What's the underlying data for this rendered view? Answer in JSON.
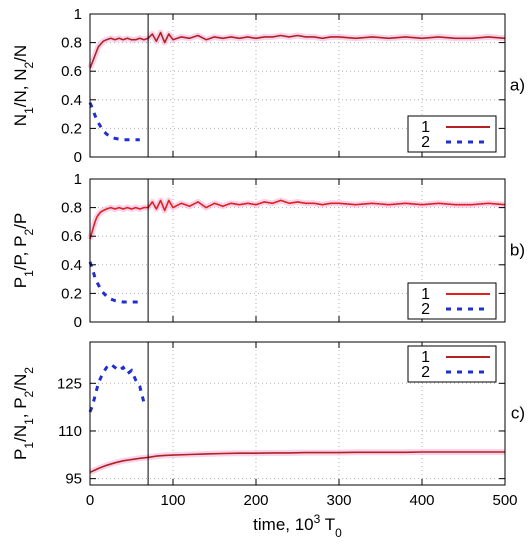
{
  "chart_data": [
    {
      "type": "line",
      "panel_label": "a)",
      "ylabel_parts": [
        "N",
        "1",
        "/N, N",
        "2",
        "/N"
      ],
      "ylim": [
        0,
        1
      ],
      "yticks": [
        0,
        0.2,
        0.4,
        0.6,
        0.8,
        1
      ],
      "ytick_labels": [
        "0",
        "0.2",
        "0.4",
        "0.6",
        "0.8",
        "1"
      ],
      "xlim": [
        0,
        500
      ],
      "xticks": [
        0,
        100,
        200,
        300,
        400,
        500
      ],
      "grid": true,
      "vline_x": 70,
      "legend_position": "bottom-right",
      "series": [
        {
          "name": "1",
          "color": "#b22222",
          "style": "solid",
          "x": [
            0,
            2,
            4,
            6,
            8,
            10,
            13,
            16,
            20,
            25,
            30,
            35,
            40,
            45,
            50,
            55,
            60,
            65,
            70,
            75,
            80,
            85,
            90,
            95,
            100,
            110,
            120,
            130,
            140,
            150,
            160,
            170,
            180,
            190,
            200,
            210,
            220,
            230,
            240,
            250,
            260,
            270,
            280,
            290,
            300,
            320,
            340,
            360,
            380,
            400,
            420,
            440,
            460,
            480,
            500
          ],
          "y": [
            0.62,
            0.65,
            0.68,
            0.71,
            0.74,
            0.77,
            0.79,
            0.81,
            0.82,
            0.83,
            0.82,
            0.83,
            0.82,
            0.83,
            0.82,
            0.82,
            0.83,
            0.82,
            0.83,
            0.86,
            0.81,
            0.87,
            0.8,
            0.86,
            0.82,
            0.84,
            0.83,
            0.85,
            0.82,
            0.84,
            0.83,
            0.84,
            0.83,
            0.84,
            0.83,
            0.84,
            0.84,
            0.85,
            0.84,
            0.85,
            0.84,
            0.84,
            0.83,
            0.84,
            0.84,
            0.83,
            0.84,
            0.83,
            0.84,
            0.83,
            0.84,
            0.83,
            0.83,
            0.84,
            0.83
          ]
        },
        {
          "name": "2",
          "color": "#1f2fd0",
          "style": "dashed",
          "x": [
            0,
            3,
            6,
            10,
            15,
            20,
            25,
            30,
            40,
            50,
            60
          ],
          "y": [
            0.38,
            0.34,
            0.29,
            0.24,
            0.19,
            0.16,
            0.14,
            0.13,
            0.12,
            0.12,
            0.12
          ]
        }
      ]
    },
    {
      "type": "line",
      "panel_label": "b)",
      "ylabel_parts": [
        "P",
        "1",
        "/P, P",
        "2",
        "/P"
      ],
      "ylim": [
        0,
        1
      ],
      "yticks": [
        0,
        0.2,
        0.4,
        0.6,
        0.8,
        1
      ],
      "ytick_labels": [
        "0",
        "0.2",
        "0.4",
        "0.6",
        "0.8",
        "1"
      ],
      "xlim": [
        0,
        500
      ],
      "xticks": [
        0,
        100,
        200,
        300,
        400,
        500
      ],
      "grid": true,
      "vline_x": 70,
      "legend_position": "bottom-right",
      "series": [
        {
          "name": "1",
          "color": "#e02020",
          "style": "solid",
          "x": [
            0,
            2,
            4,
            6,
            8,
            10,
            13,
            16,
            20,
            25,
            30,
            35,
            40,
            45,
            50,
            55,
            60,
            65,
            70,
            75,
            80,
            85,
            90,
            95,
            100,
            110,
            120,
            130,
            140,
            150,
            160,
            170,
            180,
            190,
            200,
            210,
            220,
            230,
            240,
            250,
            260,
            270,
            280,
            290,
            300,
            320,
            340,
            360,
            380,
            400,
            420,
            440,
            460,
            480,
            500
          ],
          "y": [
            0.58,
            0.62,
            0.66,
            0.7,
            0.73,
            0.75,
            0.77,
            0.78,
            0.79,
            0.8,
            0.79,
            0.8,
            0.79,
            0.8,
            0.79,
            0.8,
            0.79,
            0.8,
            0.8,
            0.84,
            0.79,
            0.85,
            0.78,
            0.85,
            0.8,
            0.83,
            0.81,
            0.84,
            0.8,
            0.83,
            0.81,
            0.83,
            0.82,
            0.83,
            0.82,
            0.84,
            0.83,
            0.85,
            0.83,
            0.84,
            0.83,
            0.83,
            0.82,
            0.83,
            0.83,
            0.82,
            0.83,
            0.82,
            0.83,
            0.82,
            0.83,
            0.82,
            0.82,
            0.83,
            0.82
          ]
        },
        {
          "name": "2",
          "color": "#1f2fd0",
          "style": "dashed",
          "x": [
            0,
            3,
            6,
            10,
            15,
            20,
            25,
            30,
            40,
            50,
            60
          ],
          "y": [
            0.42,
            0.37,
            0.31,
            0.26,
            0.21,
            0.18,
            0.16,
            0.15,
            0.14,
            0.14,
            0.14
          ]
        }
      ]
    },
    {
      "type": "line",
      "panel_label": "c)",
      "ylabel_parts": [
        "P",
        "1",
        "/N",
        "1",
        ", P",
        "2",
        "/N",
        "2"
      ],
      "ylim": [
        93,
        138
      ],
      "yticks": [
        95,
        110,
        125
      ],
      "ytick_labels": [
        "95",
        "110",
        "125"
      ],
      "xlim": [
        0,
        500
      ],
      "xticks": [
        0,
        100,
        200,
        300,
        400,
        500
      ],
      "xtick_labels": [
        "0",
        "100",
        "200",
        "300",
        "400",
        "500"
      ],
      "xlabel_parts": [
        "time, 10",
        "3",
        " T",
        "0"
      ],
      "grid": true,
      "vline_x": 70,
      "legend_position": "top-right",
      "series": [
        {
          "name": "1",
          "color": "#b22222",
          "style": "solid",
          "x": [
            0,
            5,
            10,
            20,
            30,
            40,
            50,
            60,
            70,
            80,
            90,
            100,
            120,
            140,
            160,
            180,
            200,
            220,
            240,
            260,
            280,
            300,
            320,
            340,
            360,
            380,
            400,
            420,
            440,
            460,
            480,
            500
          ],
          "y": [
            97.0,
            97.6,
            98.2,
            99.2,
            100.0,
            100.6,
            101.0,
            101.4,
            101.7,
            102.1,
            102.3,
            102.4,
            102.6,
            102.8,
            102.9,
            103.0,
            103.0,
            103.1,
            103.1,
            103.2,
            103.2,
            103.2,
            103.3,
            103.3,
            103.3,
            103.3,
            103.4,
            103.4,
            103.4,
            103.4,
            103.4,
            103.4
          ]
        },
        {
          "name": "2",
          "color": "#1f2fd0",
          "style": "dashed",
          "x": [
            0,
            3,
            6,
            10,
            15,
            20,
            25,
            30,
            35,
            40,
            45,
            50,
            55,
            60,
            65
          ],
          "y": [
            116,
            118,
            121,
            125,
            128,
            130,
            131,
            130,
            129,
            130,
            128,
            129,
            126,
            124,
            119
          ]
        }
      ]
    }
  ]
}
